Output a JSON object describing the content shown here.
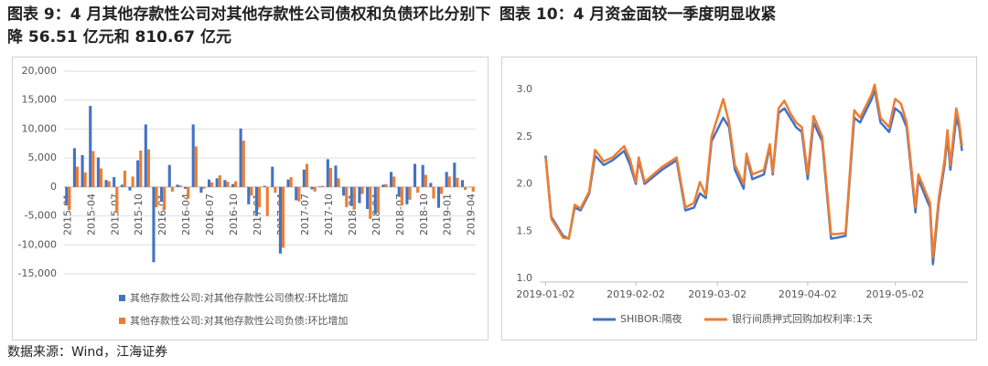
{
  "chart_data": [
    {
      "type": "bar",
      "title": "图表 9：4 月其他存款性公司对其他存款性公司债权和负债环比分别下降 56.51 亿元和 810.67 亿元",
      "categories": [
        "2015-01",
        null,
        null,
        "2015-04",
        null,
        null,
        "2015-07",
        null,
        null,
        "2015-10",
        null,
        null,
        "2016-01",
        null,
        null,
        "2016-04",
        null,
        null,
        "2016-07",
        null,
        null,
        "2016-10",
        null,
        null,
        "2017-01",
        null,
        null,
        "2017-04",
        null,
        null,
        "2017-07",
        null,
        null,
        "2017-10",
        null,
        null,
        "2018-01",
        null,
        null,
        "2018-04",
        null,
        null,
        "2018-07",
        null,
        null,
        "2018-10",
        null,
        null,
        "2019-01",
        null,
        null,
        "2019-04"
      ],
      "series": [
        {
          "name": "其他存款性公司:对其他存款性公司债权:环比增加",
          "color": "#4472c4",
          "values": [
            -3000,
            6700,
            5500,
            14000,
            5100,
            1200,
            1700,
            400,
            -600,
            4600,
            10800,
            -13000,
            -2500,
            3800,
            400,
            -300,
            10800,
            -1000,
            1300,
            1500,
            1200,
            500,
            10100,
            -3000,
            -5000,
            200,
            3500,
            -11500,
            1300,
            -2300,
            3000,
            -400,
            100,
            4800,
            3700,
            -1500,
            -3300,
            -2800,
            -3800,
            -4600,
            400,
            2600,
            -1700,
            -3000,
            4000,
            3800,
            700,
            -3600,
            2600,
            4200,
            1200,
            -56.51
          ]
        },
        {
          "name": "其他存款性公司:对其他存款性公司负债:环比增加",
          "color": "#ed7d31",
          "values": [
            -4000,
            3500,
            2500,
            6200,
            3200,
            1000,
            -4500,
            2800,
            1800,
            6300,
            6500,
            -3500,
            -4000,
            -800,
            300,
            -2000,
            7000,
            -300,
            800,
            2000,
            900,
            1000,
            8000,
            -1500,
            -3500,
            -5000,
            -1000,
            -10500,
            1700,
            -2500,
            4000,
            -800,
            200,
            3300,
            1500,
            -3500,
            -3900,
            -1200,
            -5500,
            -4500,
            500,
            1800,
            -3200,
            -2200,
            -1000,
            2100,
            -2000,
            -1200,
            1800,
            1600,
            -500,
            -810.67
          ]
        }
      ],
      "ylim": [
        -15000,
        20000
      ],
      "yticks": [
        {
          "value": -15000,
          "label": "-15,000"
        },
        {
          "value": -10000,
          "label": "-10,000"
        },
        {
          "value": -5000,
          "label": "-5,000"
        },
        0,
        {
          "value": 5000,
          "label": "5,000"
        },
        {
          "value": 10000,
          "label": "10,000"
        },
        {
          "value": 15000,
          "label": "15,000"
        },
        {
          "value": 20000,
          "label": "20,000"
        }
      ],
      "grid": true
    },
    {
      "type": "line",
      "title": "图表 10：4 月资金面较一季度明显收紧",
      "x": [
        "2019-01-02",
        "2019-01-04",
        "2019-01-08",
        "2019-01-10",
        "2019-01-12",
        "2019-01-14",
        "2019-01-17",
        "2019-01-19",
        "2019-01-22",
        "2019-01-25",
        "2019-01-29",
        "2019-01-31",
        "2019-02-02",
        "2019-02-03",
        "2019-02-05",
        "2019-02-11",
        "2019-02-16",
        "2019-02-19",
        "2019-02-22",
        "2019-02-24",
        "2019-02-26",
        "2019-02-28",
        "2019-03-04",
        "2019-03-06",
        "2019-03-08",
        "2019-03-11",
        "2019-03-12",
        "2019-03-14",
        "2019-03-18",
        "2019-03-20",
        "2019-03-21",
        "2019-03-23",
        "2019-03-25",
        "2019-03-27",
        "2019-03-29",
        "2019-03-31",
        "2019-04-02",
        "2019-04-04",
        "2019-04-07",
        "2019-04-10",
        "2019-04-12",
        "2019-04-15",
        "2019-04-18",
        "2019-04-20",
        "2019-04-24",
        "2019-04-25",
        "2019-04-27",
        "2019-04-30",
        "2019-05-02",
        "2019-05-04",
        "2019-05-06",
        "2019-05-09",
        "2019-05-10",
        "2019-05-14",
        "2019-05-15",
        "2019-05-17",
        "2019-05-19",
        "2019-05-20",
        "2019-05-21",
        "2019-05-23",
        "2019-05-24",
        "2019-05-25"
      ],
      "series": [
        {
          "name": "SHIBOR:隔夜",
          "color": "#4472c4",
          "values": [
            2.3,
            1.65,
            1.45,
            1.42,
            1.75,
            1.72,
            1.9,
            2.3,
            2.2,
            2.25,
            2.35,
            2.2,
            2.0,
            2.25,
            2.0,
            2.15,
            2.25,
            1.72,
            1.75,
            1.9,
            1.85,
            2.45,
            2.7,
            2.6,
            2.15,
            1.95,
            2.3,
            2.05,
            2.1,
            2.4,
            2.1,
            2.75,
            2.8,
            2.7,
            2.6,
            2.55,
            2.05,
            2.65,
            2.45,
            1.42,
            1.43,
            1.45,
            2.7,
            2.65,
            2.9,
            3.0,
            2.65,
            2.55,
            2.8,
            2.75,
            2.6,
            1.7,
            2.05,
            1.75,
            1.15,
            1.8,
            2.2,
            2.5,
            2.15,
            2.7,
            2.6,
            2.35
          ]
        },
        {
          "name": "银行间质押式回购加权利率:1天",
          "color": "#ed7d31",
          "values": [
            2.28,
            1.63,
            1.43,
            1.42,
            1.78,
            1.74,
            1.92,
            2.36,
            2.24,
            2.28,
            2.4,
            2.26,
            2.02,
            2.28,
            2.02,
            2.18,
            2.28,
            1.75,
            1.8,
            2.02,
            1.88,
            2.5,
            2.9,
            2.65,
            2.2,
            2.0,
            2.32,
            2.1,
            2.15,
            2.42,
            2.12,
            2.8,
            2.88,
            2.75,
            2.65,
            2.6,
            2.1,
            2.72,
            2.5,
            1.47,
            1.47,
            1.48,
            2.78,
            2.7,
            2.95,
            3.05,
            2.7,
            2.6,
            2.9,
            2.85,
            2.65,
            1.75,
            2.1,
            1.8,
            1.22,
            1.85,
            2.25,
            2.57,
            2.2,
            2.8,
            2.65,
            2.4
          ]
        }
      ],
      "xlim": [
        "2018-12-31",
        "2019-05-27"
      ],
      "xticks": [
        "2019-01-02",
        "2019-02-02",
        "2019-03-02",
        "2019-04-02",
        "2019-05-02"
      ],
      "ylim": [
        1.0,
        3.0
      ],
      "yticks": [
        {
          "value": 1.0,
          "label": "1.0"
        },
        1.5,
        {
          "value": 2.0,
          "label": "2.0"
        },
        2.5,
        {
          "value": 3.0,
          "label": "3.0"
        }
      ],
      "grid": false
    }
  ],
  "source": "数据来源：Wind，江海证券"
}
